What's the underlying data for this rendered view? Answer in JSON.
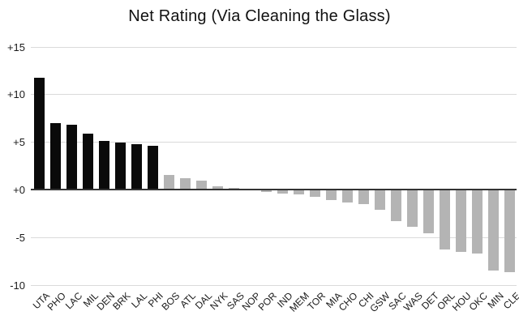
{
  "chart_data": {
    "type": "bar",
    "title": "Net Rating (Via Cleaning the Glass)",
    "xlabel": "",
    "ylabel": "",
    "categories": [
      "UTA",
      "PHO",
      "LAC",
      "MIL",
      "DEN",
      "BRK",
      "LAL",
      "PHI",
      "BOS",
      "ATL",
      "DAL",
      "NYK",
      "SAS",
      "NOP",
      "POR",
      "IND",
      "MEM",
      "TOR",
      "MIA",
      "CHO",
      "CHI",
      "GSW",
      "SAC",
      "WAS",
      "DET",
      "ORL",
      "HOU",
      "OKC",
      "MIN",
      "CLE"
    ],
    "series": [
      {
        "name": "Net Rating",
        "values": [
          11.8,
          7.0,
          6.8,
          5.9,
          5.1,
          5.0,
          4.8,
          4.6,
          1.6,
          1.2,
          1.0,
          0.4,
          0.2,
          0.1,
          -0.2,
          -0.4,
          -0.5,
          -0.7,
          -1.1,
          -1.3,
          -1.5,
          -2.1,
          -3.3,
          -3.9,
          -4.6,
          -6.3,
          -6.5,
          -6.7,
          -8.5,
          -8.6
        ]
      }
    ],
    "y_ticks": [
      "+15",
      "+10",
      "+5",
      "+0",
      "-5",
      "-10"
    ],
    "ylim": [
      -10,
      15
    ],
    "grid": "horizontal",
    "legend": "none",
    "highlighted_categories": [
      "UTA",
      "PHO",
      "LAC",
      "MIL",
      "DEN",
      "BRK",
      "LAL",
      "PHI"
    ],
    "colors": {
      "highlight_bar": "#0a0a0a",
      "default_bar": "#b4b4b4",
      "gridline": "#dadada",
      "zero_line": "#333333",
      "background": "#ffffff",
      "text": "#000000"
    }
  }
}
